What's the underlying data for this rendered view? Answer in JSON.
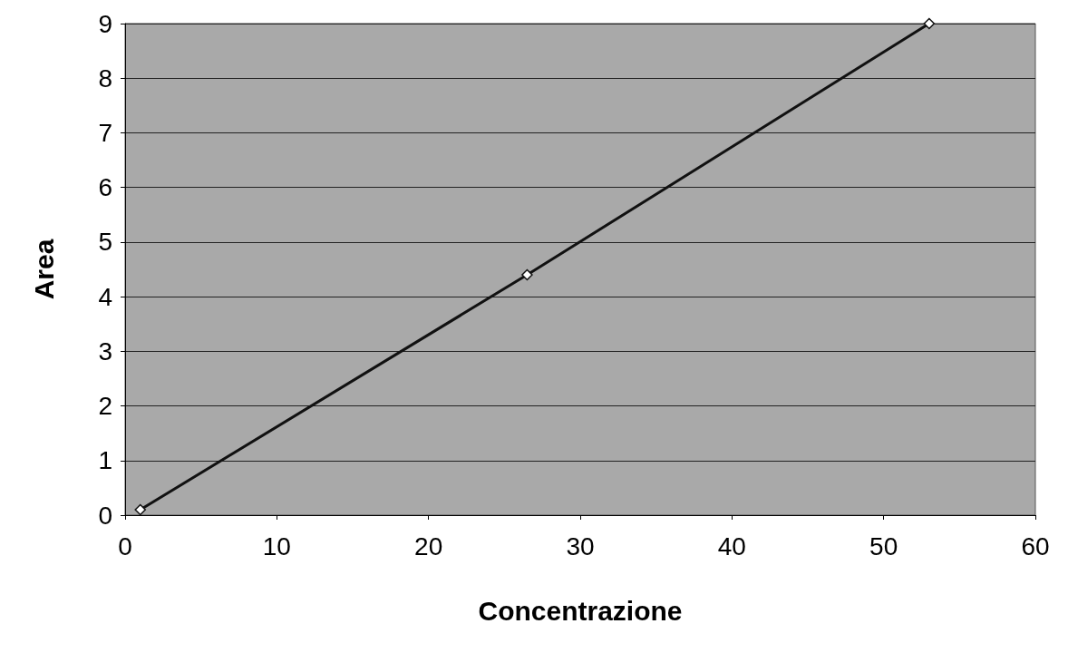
{
  "chart_data": {
    "type": "line",
    "xlabel": "Concentrazione",
    "ylabel": "Area",
    "x": [
      1,
      26.5,
      53
    ],
    "series": [
      {
        "color": "#111111",
        "values": [
          0.1,
          4.4,
          9.0
        ]
      }
    ],
    "xlim": [
      0,
      60
    ],
    "xticks": [
      0,
      10,
      20,
      30,
      40,
      50,
      60
    ],
    "ylim": [
      0,
      9
    ],
    "yticks": [
      0,
      1,
      2,
      3,
      4,
      5,
      6,
      7,
      8,
      9
    ],
    "grid": "y",
    "marker": "diamond",
    "line_style": "solid"
  }
}
